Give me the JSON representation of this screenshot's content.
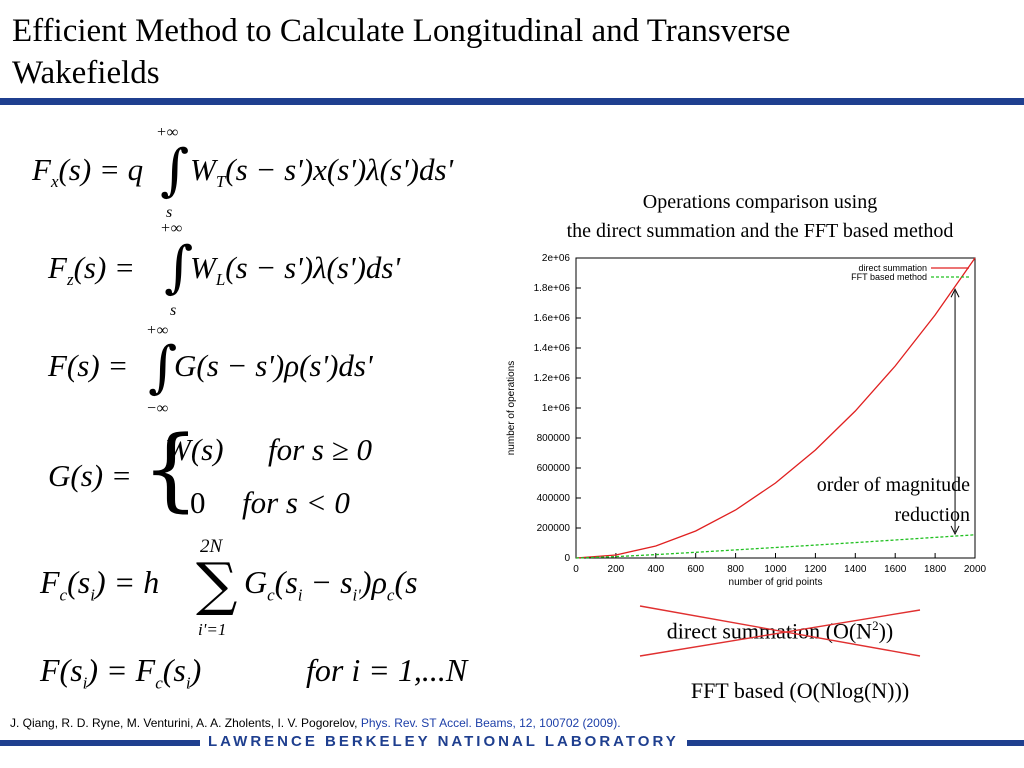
{
  "slide": {
    "title": "Efficient Method to Calculate Longitudinal and Transverse Wakefields",
    "chart_caption_line1": "Operations comparison using",
    "chart_caption_line2": "the direct summation and the FFT based method",
    "annotation_line1": "order of magnitude",
    "annotation_line2": "reduction",
    "direct_label": "direct summation (O(N",
    "direct_label_sup": "2",
    "direct_label_end": "))",
    "fft_label": "FFT based (O(Nlog(N)))",
    "reference_authors": "J. Qiang, R. D. Ryne, M. Venturini, A. A. Zholents, I. V. Pogorelov, ",
    "reference_journal": "Phys. Rev. ST Accel. Beams, 12, 100702 (2009).",
    "footer": "LAWRENCE BERKELEY NATIONAL LABORATORY"
  },
  "equations": {
    "eq1": {
      "lhs": "F",
      "lhs_sub": "x",
      "body": "(s) = q",
      "upper": "+∞",
      "lower": "s",
      "integrand": "W",
      "integrand_sub": "T",
      "rest": "(s − s')x(s')λ(s')ds'"
    },
    "eq2": {
      "lhs": "F",
      "lhs_sub": "z",
      "body": "(s) =",
      "upper": "+∞",
      "lower": "s",
      "integrand": "W",
      "integrand_sub": "L",
      "rest": "(s − s')λ(s')ds'"
    },
    "eq3": {
      "lhs": "F(s) =",
      "upper": "+∞",
      "lower": "−∞",
      "rest": "G(s − s')ρ(s')ds'"
    },
    "eq4": {
      "lhs": "G(s) =",
      "case1_value": "W(s)",
      "case1_cond": "for s ≥ 0",
      "case2_value": "0",
      "case2_cond": "for s < 0"
    },
    "eq5": {
      "lhs": "F",
      "lhs_sub": "c",
      "lhs_arg": "(s",
      "lhs_arg_sub": "i",
      "body": ") = h",
      "upper": "2N",
      "lower": "i'=1",
      "rest": "G",
      "rest_sub": "c",
      "rest2": "(s",
      "rest2_sub": "i",
      "rest3": " − s",
      "rest3_sub": "i'",
      "rest4": ")ρ",
      "rest4_sub": "c",
      "rest5": "(s"
    },
    "eq6": {
      "lhs": "F(s",
      "lhs_sub": "i",
      "body": ") = F",
      "body_sub": "c",
      "arg": "(s",
      "arg_sub": "i",
      "end": ")",
      "cond": "for  i = 1,...N"
    }
  },
  "chart_data": {
    "type": "line",
    "xlabel": "number of grid points",
    "ylabel": "number of operations",
    "xlim": [
      0,
      2000
    ],
    "ylim": [
      0,
      2000000
    ],
    "x_ticks": [
      "0",
      "200",
      "400",
      "600",
      "800",
      "1000",
      "1200",
      "1400",
      "1600",
      "1800",
      "2000"
    ],
    "y_ticks": [
      "0",
      "200000",
      "400000",
      "600000",
      "800000",
      "1e+06",
      "1.2e+06",
      "1.4e+06",
      "1.6e+06",
      "1.8e+06",
      "2e+06"
    ],
    "legend_position": "top-right",
    "series": [
      {
        "name": "direct summation",
        "color": "#e02020",
        "x": [
          0,
          200,
          400,
          600,
          800,
          1000,
          1200,
          1400,
          1600,
          1800,
          2000
        ],
        "y": [
          0,
          20000,
          80000,
          180000,
          320000,
          500000,
          720000,
          980000,
          1280000,
          1620000,
          2000000
        ]
      },
      {
        "name": "FFT based method",
        "color": "#20c020",
        "x": [
          0,
          200,
          400,
          600,
          800,
          1000,
          1200,
          1400,
          1600,
          1800,
          2000
        ],
        "y": [
          0,
          9000,
          23000,
          38000,
          54000,
          70000,
          86000,
          103000,
          120000,
          137000,
          155000
        ]
      }
    ]
  }
}
